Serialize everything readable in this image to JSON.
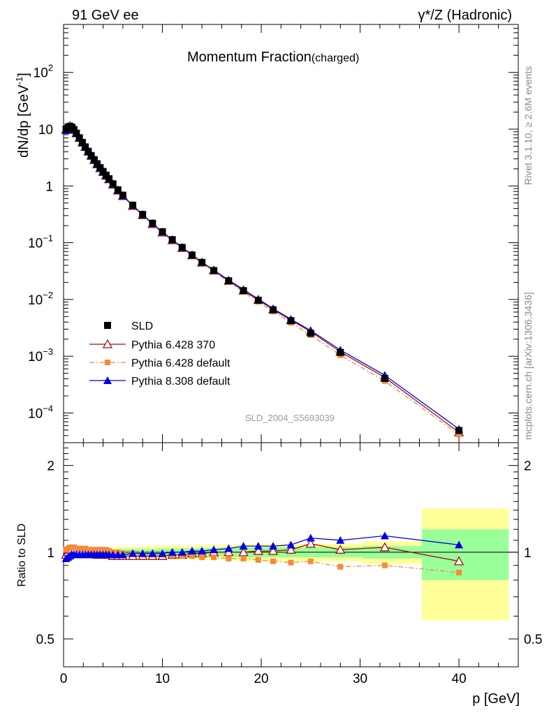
{
  "header": {
    "left": "91 GeV ee",
    "right": "γ*/Z (Hadronic)"
  },
  "side": {
    "rivet": "Rivet 3.1.10, ≥ 2.6M events",
    "mcplots": "mcplots.cern.ch [arXiv:1306.3436]"
  },
  "colors": {
    "sld": "#000000",
    "py6_370": "#a01010",
    "py6_default": "#f58a3c",
    "py8": "#0000e6",
    "band_inner": "#99ff99",
    "band_outer": "#ffff99"
  },
  "chart_data": {
    "type": "line",
    "title": "Momentum Fraction",
    "title_sub": "(charged)",
    "analysis": "SLD_2004_S5693039",
    "xlabel": "p [GeV]",
    "ylabel_main": "dN/dp [GeV",
    "ylabel_main_exp": "-1",
    "ylabel_main_close": "]",
    "ylabel_ratio": "Ratio to SLD",
    "xlim": [
      0,
      46
    ],
    "ylim_main": [
      3e-05,
      700
    ],
    "ylim_ratio": [
      0.4,
      2.4
    ],
    "yscale": "log",
    "grid": false,
    "legend_placement": "lower-left",
    "x_ticks": [
      "0",
      "10",
      "20",
      "30",
      "40"
    ],
    "main_y_ticks": [
      {
        "v": 100,
        "m": "10",
        "e": "2"
      },
      {
        "v": 10,
        "m": "10",
        "e": ""
      },
      {
        "v": 1,
        "m": "1",
        "e": ""
      },
      {
        "v": 0.1,
        "m": "10",
        "e": "−1"
      },
      {
        "v": 0.01,
        "m": "10",
        "e": "−2"
      },
      {
        "v": 0.001,
        "m": "10",
        "e": "−3"
      },
      {
        "v": 0.0001,
        "m": "10",
        "e": "−4"
      }
    ],
    "ratio_y_ticks": [
      "2",
      "1",
      "0.5"
    ],
    "x": [
      0.25,
      0.45,
      0.65,
      0.85,
      1.05,
      1.3,
      1.6,
      1.9,
      2.2,
      2.5,
      2.8,
      3.1,
      3.4,
      3.7,
      4.0,
      4.3,
      4.6,
      5.0,
      5.5,
      6.0,
      7.0,
      8.0,
      9.0,
      10.0,
      11.0,
      12.0,
      13.0,
      14.0,
      15.2,
      16.7,
      18.2,
      19.7,
      21.2,
      23.0,
      25.0,
      28.0,
      32.5,
      40.0
    ],
    "series": [
      {
        "name": "SLD",
        "marker": "filled-square",
        "values": [
          10.0,
          10.9,
          11.2,
          10.8,
          9.82,
          8.49,
          7.04,
          5.84,
          4.87,
          4.08,
          3.43,
          2.9,
          2.46,
          2.1,
          1.8,
          1.55,
          1.34,
          1.09,
          0.855,
          0.686,
          0.458,
          0.315,
          0.22,
          0.156,
          0.113,
          0.0826,
          0.0606,
          0.045,
          0.0323,
          0.0213,
          0.0143,
          0.00969,
          0.00658,
          0.00423,
          0.00254,
          0.00117,
          0.000406,
          4.92e-05
        ],
        "band_inner": [
          0.02,
          0.02,
          0.02,
          0.02,
          0.02,
          0.02,
          0.02,
          0.02,
          0.02,
          0.02,
          0.02,
          0.02,
          0.02,
          0.02,
          0.02,
          0.02,
          0.02,
          0.02,
          0.025,
          0.025,
          0.025,
          0.025,
          0.025,
          0.03,
          0.03,
          0.03,
          0.03,
          0.035,
          0.035,
          0.035,
          0.04,
          0.04,
          0.04,
          0.04,
          0.04,
          0.04,
          0.05,
          0.2
        ],
        "band_outer": [
          0.04,
          0.04,
          0.04,
          0.04,
          0.04,
          0.04,
          0.04,
          0.04,
          0.04,
          0.04,
          0.04,
          0.04,
          0.04,
          0.04,
          0.04,
          0.04,
          0.04,
          0.04,
          0.045,
          0.045,
          0.045,
          0.05,
          0.05,
          0.055,
          0.055,
          0.055,
          0.055,
          0.06,
          0.06,
          0.06,
          0.07,
          0.07,
          0.07,
          0.07,
          0.07,
          0.07,
          0.09,
          0.42
        ]
      },
      {
        "name": "Pythia 6.428 370",
        "marker": "open-triangle",
        "ratio": [
          0.98,
          1.0,
          1.02,
          1.02,
          1.01,
          1.0,
          1.0,
          1.0,
          1.0,
          0.99,
          0.99,
          0.99,
          0.98,
          0.98,
          0.98,
          0.98,
          0.98,
          0.97,
          0.97,
          0.97,
          0.97,
          0.97,
          0.97,
          0.97,
          0.98,
          0.98,
          0.99,
          0.99,
          1.0,
          1.0,
          1.0,
          1.01,
          1.01,
          1.02,
          1.07,
          1.02,
          1.04,
          0.93
        ]
      },
      {
        "name": "Pythia 6.428 default",
        "marker": "filled-square-small",
        "ratio": [
          1.02,
          1.03,
          1.04,
          1.04,
          1.04,
          1.03,
          1.03,
          1.03,
          1.03,
          1.02,
          1.02,
          1.02,
          1.02,
          1.02,
          1.02,
          1.02,
          1.01,
          1.0,
          1.0,
          0.99,
          0.99,
          0.98,
          0.98,
          0.98,
          0.98,
          0.97,
          0.97,
          0.96,
          0.96,
          0.95,
          0.95,
          0.94,
          0.93,
          0.92,
          0.93,
          0.89,
          0.9,
          0.85
        ]
      },
      {
        "name": "Pythia 8.308 default",
        "marker": "filled-triangle",
        "ratio": [
          0.95,
          0.96,
          0.97,
          0.98,
          0.98,
          0.98,
          0.98,
          0.98,
          0.98,
          0.98,
          0.98,
          0.98,
          0.98,
          0.98,
          0.98,
          0.98,
          0.98,
          0.98,
          0.98,
          0.98,
          0.99,
          0.99,
          0.99,
          0.99,
          1.0,
          1.0,
          1.01,
          1.01,
          1.02,
          1.03,
          1.05,
          1.05,
          1.05,
          1.06,
          1.12,
          1.1,
          1.14,
          1.06
        ]
      }
    ]
  }
}
